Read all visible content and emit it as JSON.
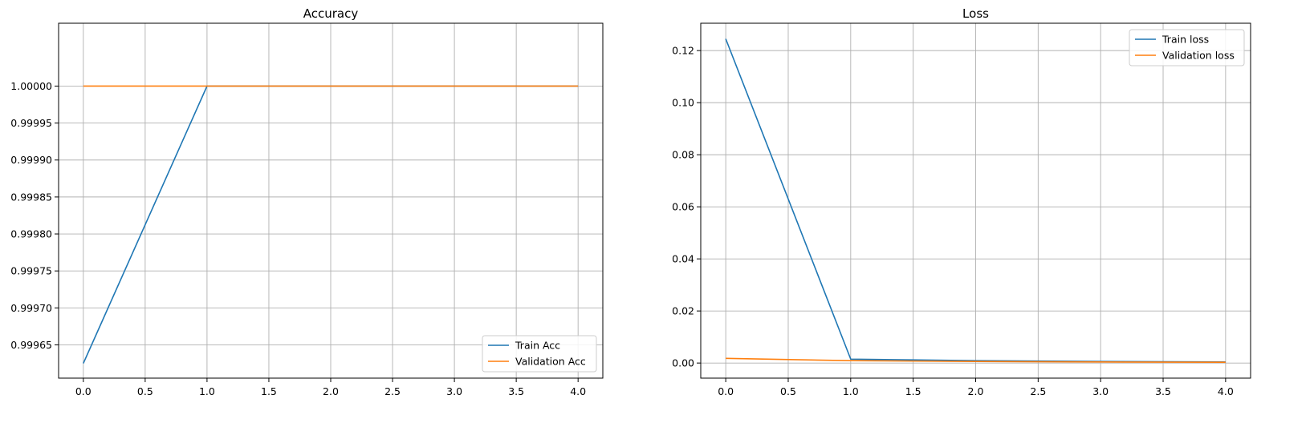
{
  "colors": {
    "train": "#1f77b4",
    "validation": "#ff7f0e",
    "grid": "#b0b0b0",
    "axes": "#000000"
  },
  "chart_data": [
    {
      "type": "line",
      "title": "Accuracy",
      "xlabel": "",
      "ylabel": "",
      "grid": true,
      "legend_position": "lower-right",
      "xlim": [
        -0.2,
        4.2
      ],
      "ylim": [
        0.999605,
        1.000085
      ],
      "x_ticks": [
        0.0,
        0.5,
        1.0,
        1.5,
        2.0,
        2.5,
        3.0,
        3.5,
        4.0
      ],
      "x_tick_labels": [
        "0.0",
        "0.5",
        "1.0",
        "1.5",
        "2.0",
        "2.5",
        "3.0",
        "3.5",
        "4.0"
      ],
      "y_ticks": [
        0.99965,
        0.9997,
        0.99975,
        0.9998,
        0.99985,
        0.9999,
        0.99995,
        1.0
      ],
      "y_tick_labels": [
        "0.99965",
        "0.99970",
        "0.99975",
        "0.99980",
        "0.99985",
        "0.99990",
        "0.99995",
        "1.00000"
      ],
      "x": [
        0,
        1,
        2,
        3,
        4
      ],
      "series": [
        {
          "name": "Train Acc",
          "color_key": "train",
          "values": [
            0.999625,
            1.0,
            1.0,
            1.0,
            1.0
          ]
        },
        {
          "name": "Validation Acc",
          "color_key": "validation",
          "values": [
            1.0,
            1.0,
            1.0,
            1.0,
            1.0
          ]
        }
      ]
    },
    {
      "type": "line",
      "title": "Loss",
      "xlabel": "",
      "ylabel": "",
      "grid": true,
      "legend_position": "upper-right",
      "xlim": [
        -0.2,
        4.2
      ],
      "ylim": [
        -0.0058,
        0.1305
      ],
      "x_ticks": [
        0.0,
        0.5,
        1.0,
        1.5,
        2.0,
        2.5,
        3.0,
        3.5,
        4.0
      ],
      "x_tick_labels": [
        "0.0",
        "0.5",
        "1.0",
        "1.5",
        "2.0",
        "2.5",
        "3.0",
        "3.5",
        "4.0"
      ],
      "y_ticks": [
        0.0,
        0.02,
        0.04,
        0.06,
        0.08,
        0.1,
        0.12
      ],
      "y_tick_labels": [
        "0.00",
        "0.02",
        "0.04",
        "0.06",
        "0.08",
        "0.10",
        "0.12"
      ],
      "x": [
        0,
        1,
        2,
        3,
        4
      ],
      "series": [
        {
          "name": "Train loss",
          "color_key": "train",
          "values": [
            0.1245,
            0.0015,
            0.0009,
            0.0006,
            0.0004
          ]
        },
        {
          "name": "Validation loss",
          "color_key": "validation",
          "values": [
            0.0018,
            0.0009,
            0.0006,
            0.0004,
            0.0003
          ]
        }
      ]
    }
  ]
}
